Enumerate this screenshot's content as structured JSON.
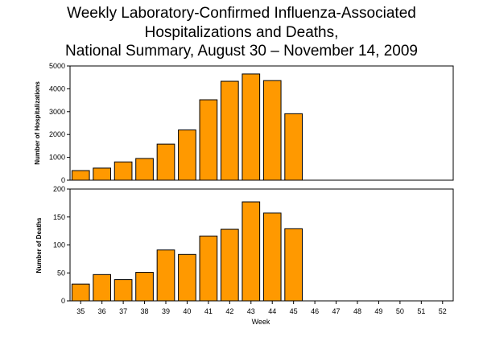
{
  "title": {
    "line1": "Weekly Laboratory-Confirmed Influenza-Associated",
    "line2": "Hospitalizations and Deaths,",
    "line3": "National Summary, August 30 – November 14, 2009"
  },
  "chart_data": [
    {
      "type": "bar",
      "categories": [
        "35",
        "36",
        "37",
        "38",
        "39",
        "40",
        "41",
        "42",
        "43",
        "44",
        "45",
        "46",
        "47",
        "48",
        "49",
        "50",
        "51",
        "52"
      ],
      "values": [
        420,
        530,
        800,
        950,
        1580,
        2200,
        3520,
        4330,
        4650,
        4360,
        2910,
        null,
        null,
        null,
        null,
        null,
        null,
        null
      ],
      "ylabel": "Number of Hospitalizations",
      "xlabel": "",
      "ylim": [
        0,
        5000
      ],
      "yticks": [
        "0",
        "1000",
        "2000",
        "3000",
        "4000",
        "5000"
      ],
      "grid": false,
      "bar_color": "#FF9900"
    },
    {
      "type": "bar",
      "categories": [
        "35",
        "36",
        "37",
        "38",
        "39",
        "40",
        "41",
        "42",
        "43",
        "44",
        "45",
        "46",
        "47",
        "48",
        "49",
        "50",
        "51",
        "52"
      ],
      "values": [
        30,
        47,
        38,
        51,
        91,
        83,
        116,
        128,
        177,
        157,
        129,
        null,
        null,
        null,
        null,
        null,
        null,
        null
      ],
      "ylabel": "Number of Deaths",
      "xlabel": "Week",
      "ylim": [
        0,
        200
      ],
      "yticks": [
        "0",
        "50",
        "100",
        "150",
        "200"
      ],
      "grid": false,
      "bar_color": "#FF9900"
    }
  ]
}
